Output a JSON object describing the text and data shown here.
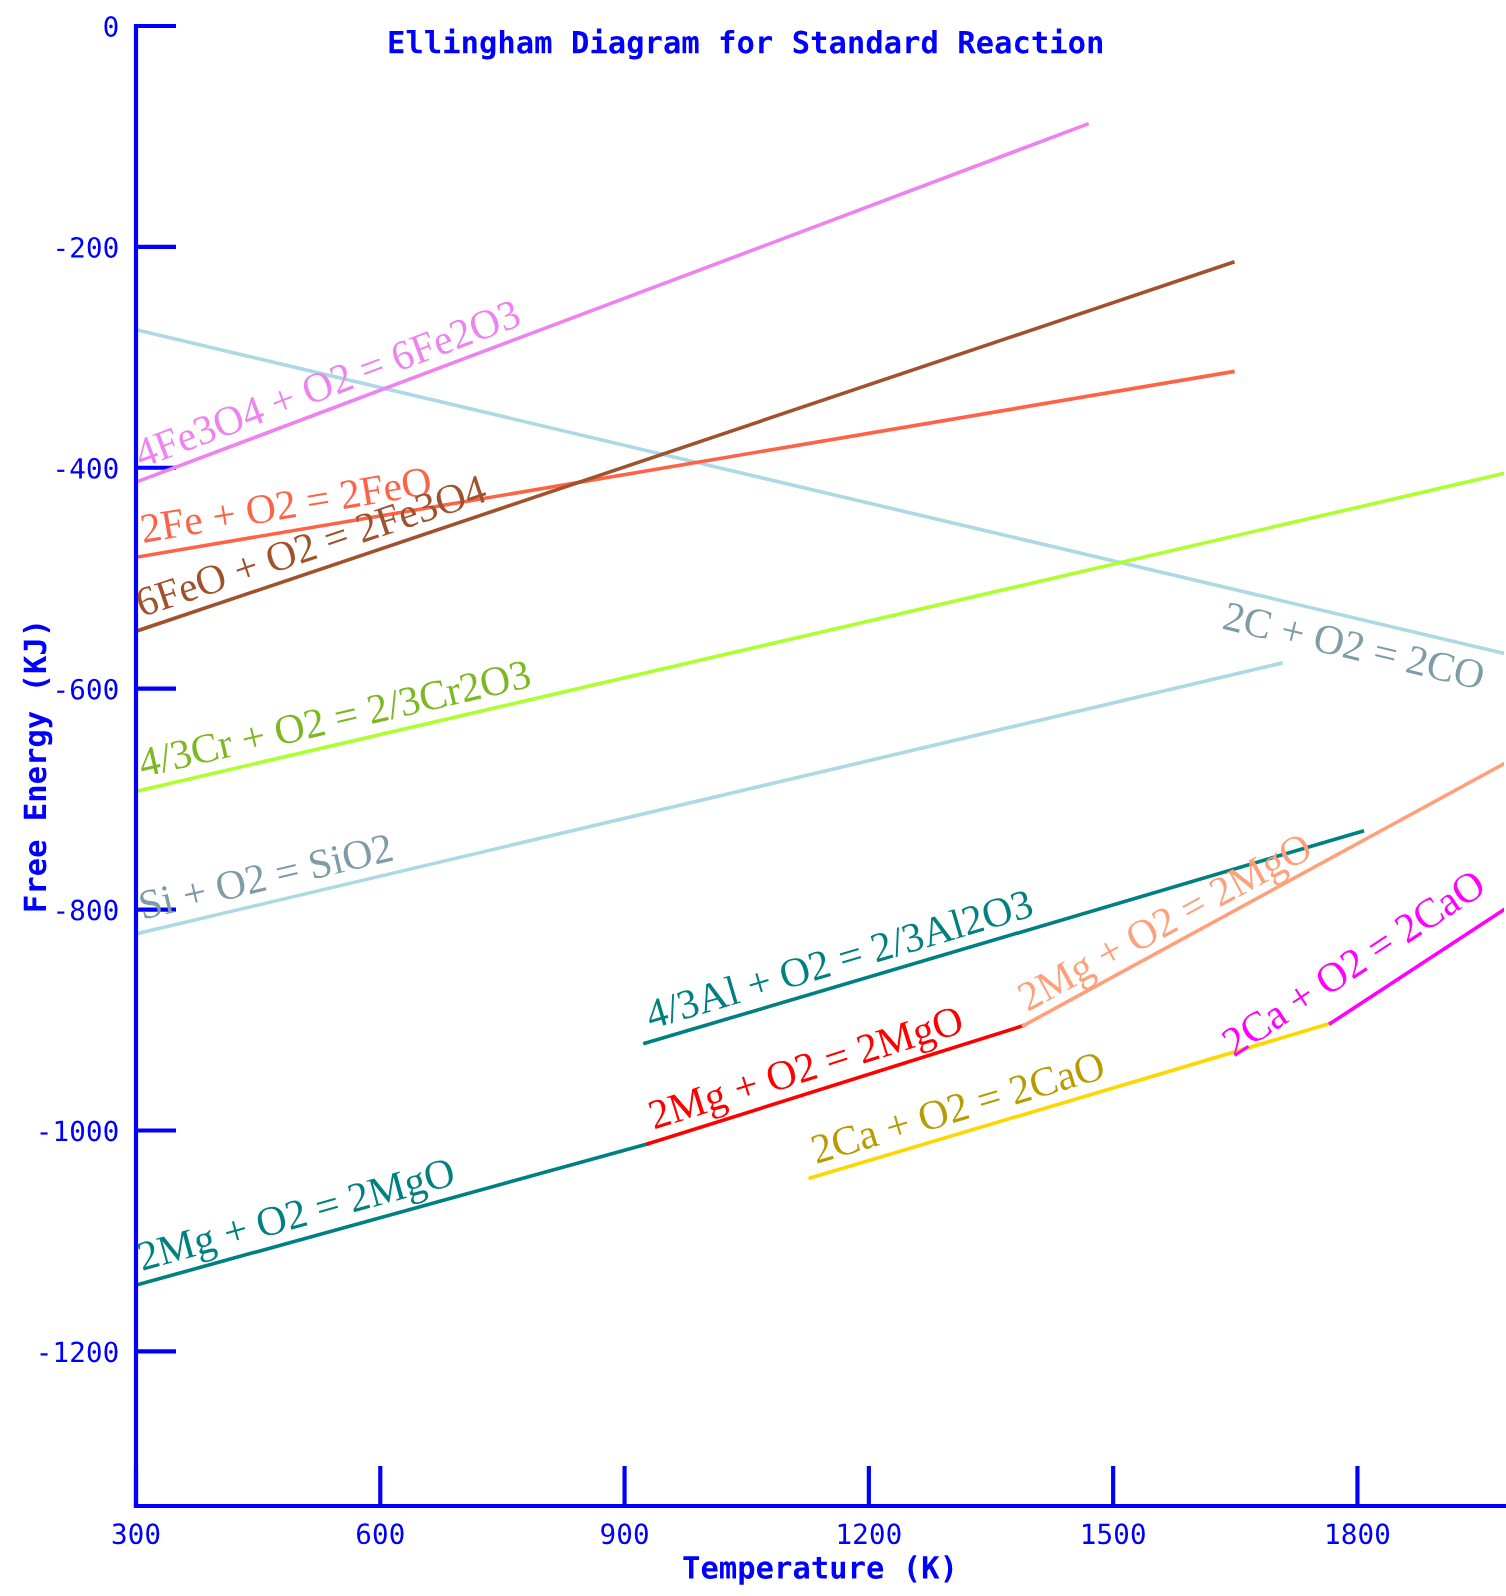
{
  "chart_data": {
    "type": "line",
    "title": "Ellingham Diagram for Standard Reaction",
    "xlabel": "Temperature (K)",
    "ylabel": "Free Energy (KJ)",
    "xlim": [
      300,
      1980
    ],
    "xticks": [
      300,
      600,
      900,
      1200,
      1500,
      1800
    ],
    "ylim": [
      -1340,
      0
    ],
    "yticks": [
      0,
      -200,
      -400,
      -600,
      -800,
      -1000,
      -1200
    ],
    "grid": false,
    "legend": false,
    "marker": "none",
    "line_style": "solid",
    "series": [
      {
        "name": "2C + O2 = 2CO",
        "color": "#add8e6",
        "x": [
          300,
          1980
        ],
        "values": [
          -275,
          -568
        ]
      },
      {
        "name": "4Fe3O4 + O2 = 6Fe2O3",
        "color": "#ee82ee",
        "x": [
          300,
          1468
        ],
        "values": [
          -413,
          -89
        ]
      },
      {
        "name": "2Fe + O2 = 2FeO",
        "color": "#ff6347",
        "x": [
          300,
          1647
        ],
        "values": [
          -481,
          -313
        ]
      },
      {
        "name": "6FeO + O2 = 2Fe3O4",
        "color": "#a0522d",
        "x": [
          300,
          1647
        ],
        "values": [
          -548,
          -214
        ]
      },
      {
        "name": "4/3Cr + O2 = 2/3Cr2O3",
        "color": "#adff2f",
        "x": [
          300,
          1980
        ],
        "values": [
          -693,
          -405
        ]
      },
      {
        "name": "Si + O2 = SiO2",
        "color": "#add8e6",
        "x": [
          300,
          1706
        ],
        "values": [
          -822,
          -577
        ]
      },
      {
        "name": "4/3Al + O2 = 2/3Al2O3",
        "color": "#008080",
        "x": [
          925,
          1806
        ],
        "values": [
          -921,
          -729
        ]
      },
      {
        "name": "2Mg + O2 = 2MgO",
        "color": "#008080",
        "x": [
          300,
          929
        ],
        "values": [
          -1140,
          -1012
        ]
      },
      {
        "name": "2Mg + O2 = 2MgO",
        "color": "#ff0000",
        "x": [
          929,
          1390
        ],
        "values": [
          -1012,
          -905
        ]
      },
      {
        "name": "2Mg + O2 = 2MgO",
        "color": "#ffa07a",
        "x": [
          1390,
          1980
        ],
        "values": [
          -905,
          -668
        ]
      },
      {
        "name": "2Ca + O2 = 2CaO",
        "color": "#ffd700",
        "x": [
          1128,
          1767
        ],
        "values": [
          -1043,
          -903
        ]
      },
      {
        "name": "2Ca + O2 = 2CaO",
        "color": "#ff00ff",
        "x": [
          1767,
          1980
        ],
        "values": [
          -903,
          -800
        ]
      }
    ]
  }
}
